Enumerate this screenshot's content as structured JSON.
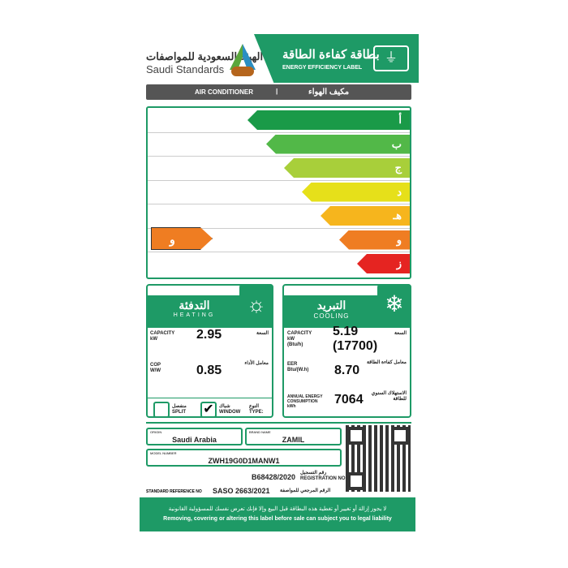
{
  "header": {
    "org_ar": "الهيئة السعودية للمواصفات",
    "org_en": "Saudi Standards",
    "logo_badge": "تقييس",
    "title_ar": "بطاقة كفاءة الطاقة",
    "title_en": "ENERGY EFFICIENCY LABEL",
    "icon": "plug-icon"
  },
  "product": {
    "en": "AIR CONDITIONER",
    "sep": "|",
    "ar": "مكيف الهواء"
  },
  "ratings": [
    {
      "letter": "أ",
      "color": "#1a9a48"
    },
    {
      "letter": "ب",
      "color": "#52b848"
    },
    {
      "letter": "ج",
      "color": "#a8cf3a"
    },
    {
      "letter": "د",
      "color": "#e6e01a"
    },
    {
      "letter": "هـ",
      "color": "#f6b51d"
    },
    {
      "letter": "و",
      "color": "#ef7d22"
    },
    {
      "letter": "ز",
      "color": "#e52421"
    }
  ],
  "current_rating": {
    "letter": "و",
    "color": "#ef7d22"
  },
  "heating": {
    "title_ar": "التدفئة",
    "title_en": "HEATING",
    "icon": "sun-icon",
    "capacity_label": "CAPACITY",
    "capacity_unit": "kW",
    "capacity_label_ar": "السعة",
    "capacity": "2.95",
    "cop_label": "COP",
    "cop_unit": "W/W",
    "cop_label_ar": "معامل الأداء",
    "cop": "0.85"
  },
  "cooling": {
    "title_ar": "التبريد",
    "title_en": "COOLING",
    "icon": "snowflake-icon",
    "capacity_label": "CAPACITY",
    "capacity_unit": "kW",
    "capacity_unit2": "(Btu/h)",
    "capacity_label_ar": "السعة",
    "capacity": "5.19",
    "capacity_btu": "(17700)",
    "eer_label": "EER",
    "eer_unit": "Btu/(W.h)",
    "eer_label_ar": "معامل كفاءة الطاقة",
    "eer": "8.70",
    "annual_label": "ANNUAL ENERGY CONSUMPTION",
    "annual_unit": "kWh",
    "annual_label_ar": "الاستهلاك السنوي للطاقة",
    "annual": "7064"
  },
  "type": {
    "label_ar": "النوع",
    "label_en": "TYPE:",
    "options": [
      {
        "ar": "شباك",
        "en": "WINDOW",
        "checked": true
      },
      {
        "ar": "منفصل",
        "en": "SPLIT",
        "checked": false
      }
    ]
  },
  "details": {
    "country_label": "ORIGIN",
    "country": "Saudi Arabia",
    "brand_label": "BRAND NAME",
    "brand": "ZAMIL",
    "model_label": "MODEL NUMBER",
    "model": "ZWH19G0D1MANW1",
    "reg_label_ar": "رقم التسجيل",
    "reg_label_en": "REGISTRATION NO",
    "reg": "B68428/2020",
    "std_label": "STANDARD REFERENCE NO",
    "std": "SASO 2663/2021",
    "std_label_ar": "الرقم المرجعي للمواصفة"
  },
  "footer": {
    "ar": "لا يجوز إزالة أو تغيير أو تغطية هذه البطاقة قبل البيع وإلا فإنك تعرض نفسك للمسؤولية القانونية",
    "en": "Removing, covering or altering this label before sale can subject you to legal liability"
  }
}
